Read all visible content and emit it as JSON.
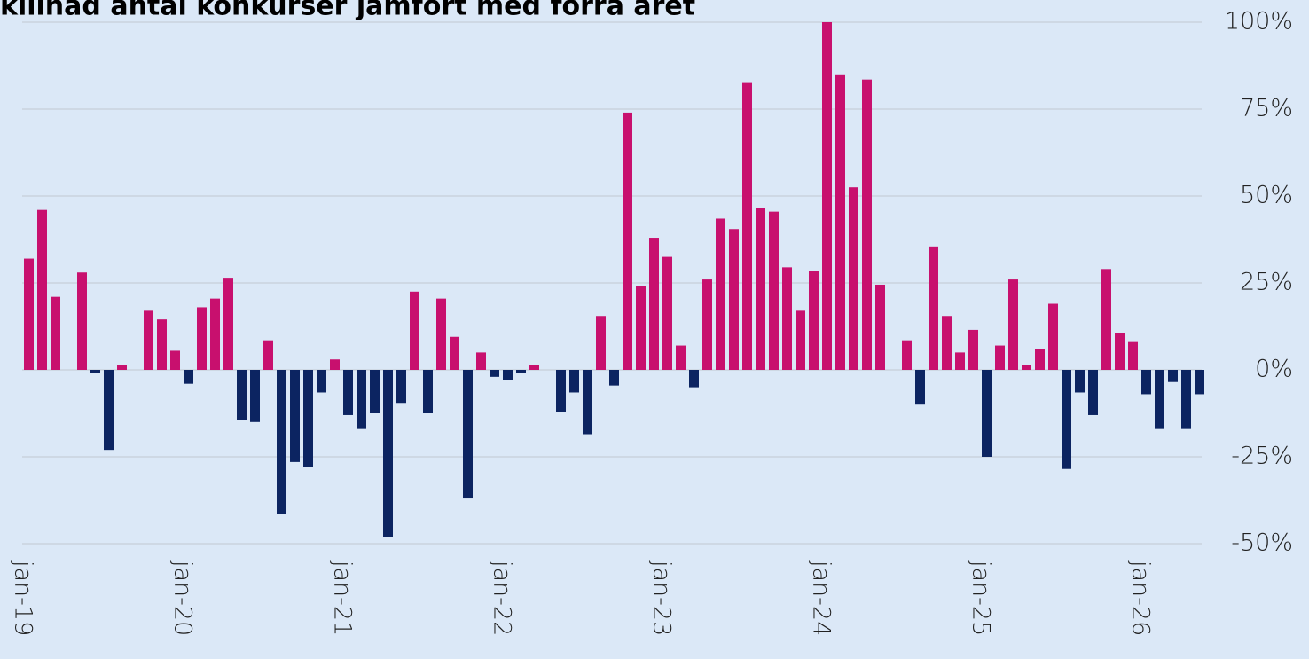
{
  "chart_data": {
    "type": "bar",
    "title": "killnad antal konkurser jämfört med förra året",
    "categories": [
      "jan-19",
      null,
      null,
      null,
      null,
      null,
      null,
      null,
      null,
      null,
      null,
      null,
      "jan-20",
      null,
      null,
      null,
      null,
      null,
      null,
      null,
      null,
      null,
      null,
      null,
      "jan-21",
      null,
      null,
      null,
      null,
      null,
      null,
      null,
      null,
      null,
      null,
      null,
      "jan-22",
      null,
      null,
      null,
      null,
      null,
      null,
      null,
      null,
      null,
      null,
      null,
      "jan-23",
      null,
      null,
      null,
      null,
      null,
      null,
      null,
      null,
      null,
      null,
      null,
      "jan-24",
      null,
      null,
      null,
      null,
      null,
      null,
      null,
      null,
      null,
      null,
      null,
      "jan-25",
      null,
      null,
      null,
      null,
      null,
      null,
      null,
      null,
      null,
      null,
      null,
      "jan-26",
      null,
      null,
      null,
      null
    ],
    "values": [
      32,
      46,
      21,
      0,
      28,
      -1,
      -23,
      1.5,
      0,
      17,
      14.5,
      5.5,
      -4,
      18,
      20.5,
      26.5,
      -14.5,
      -15,
      8.5,
      -41.5,
      -26.5,
      -28,
      -6.5,
      3,
      -13,
      -17,
      -12.5,
      -48,
      -9.5,
      22.5,
      -12.5,
      20.5,
      9.5,
      -37,
      5,
      -2,
      -3,
      -1,
      1.5,
      0,
      -12,
      -6.5,
      -18.5,
      15.5,
      -4.5,
      74,
      24,
      38,
      32.5,
      7,
      -5,
      26,
      43.5,
      40.5,
      82.5,
      46.5,
      45.5,
      29.5,
      17,
      28.5,
      100,
      85,
      52.5,
      83.5,
      24.5,
      0,
      8.5,
      -10,
      35.5,
      15.5,
      5,
      11.5,
      -25,
      7,
      26,
      1.5,
      6,
      19,
      -28.5,
      -6.5,
      -13,
      29,
      10.5,
      8,
      -7,
      -17,
      -3.5,
      -17,
      -7
    ],
    "positive_color": "#c8106e",
    "negative_color": "#0c2461",
    "ylim": [
      -50,
      100
    ],
    "yticks": [
      {
        "value": -50,
        "label": "-50%"
      },
      {
        "value": -25,
        "label": "-25%"
      },
      {
        "value": 0,
        "label": "0%"
      },
      {
        "value": 25,
        "label": "25%"
      },
      {
        "value": 50,
        "label": "50%"
      },
      {
        "value": 75,
        "label": "75%"
      },
      {
        "value": 100,
        "label": "100%"
      }
    ],
    "grid": true
  }
}
